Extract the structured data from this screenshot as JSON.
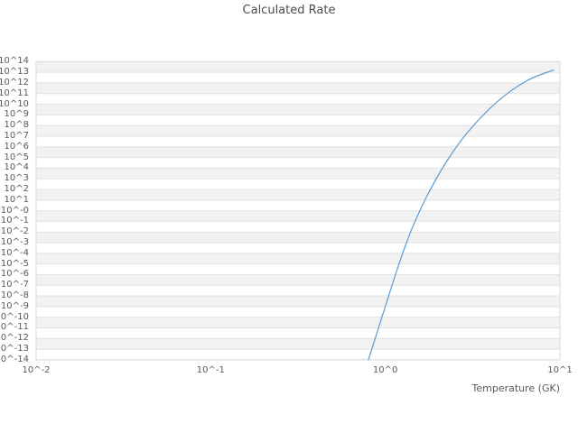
{
  "chart": {
    "style": {
      "line_color": "#5b9bd5",
      "band_color": "#f2f2f2",
      "grid_color": "#e2e2e2",
      "border_color": "#d9d9d9",
      "text_color": "#595959",
      "title_color": "#4d4d4d",
      "background": "#ffffff"
    }
  },
  "chart_data": {
    "type": "line",
    "title": "Calculated Rate",
    "xlabel": "Temperature (GK)",
    "ylabel": "",
    "x_scale": "log",
    "y_scale": "log",
    "xlim_log10": [
      -2,
      1
    ],
    "ylim_log10": [
      -14,
      14
    ],
    "grid": "horizontal-decade-bands",
    "legend": "none",
    "x_tick_labels": [
      "10^-2",
      "10^-1",
      "10^0",
      "10^1"
    ],
    "x_tick_log10": [
      -2,
      -1,
      0,
      1
    ],
    "y_tick_labels": [
      "10^14",
      "10^13",
      "10^12",
      "10^11",
      "10^10",
      "10^9",
      "10^8",
      "10^7",
      "10^6",
      "10^5",
      "10^4",
      "10^3",
      "10^2",
      "10^1",
      "10^-0",
      "10^-1",
      "10^-2",
      "10^-3",
      "10^-4",
      "10^-5",
      "10^-6",
      "10^-7",
      "10^-8",
      "10^-9",
      "10^-10",
      "10^-11",
      "10^-12",
      "10^-13",
      "10^-14"
    ],
    "y_tick_log10": [
      14,
      13,
      12,
      11,
      10,
      9,
      8,
      7,
      6,
      5,
      4,
      3,
      2,
      1,
      0,
      -1,
      -2,
      -3,
      -4,
      -5,
      -6,
      -7,
      -8,
      -9,
      -10,
      -11,
      -12,
      -13,
      -14
    ],
    "series": [
      {
        "name": "calculated-rate",
        "color": "#5b9bd5",
        "x_GK": [
          0.8,
          0.89,
          1.17,
          1.38,
          1.71,
          2.22,
          2.94,
          4.35,
          6.45,
          9.18
        ],
        "log10_rate": [
          -14.0,
          -11.6,
          -5.5,
          -2.2,
          1.2,
          4.5,
          7.3,
          10.2,
          12.2,
          13.2
        ]
      }
    ]
  }
}
